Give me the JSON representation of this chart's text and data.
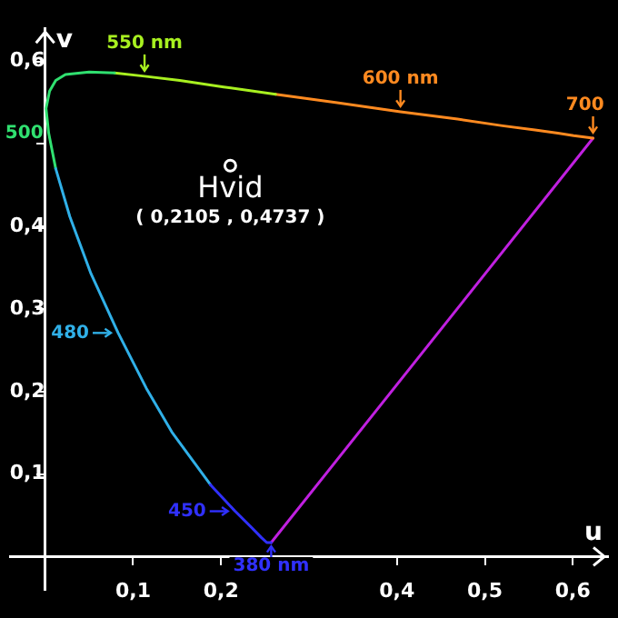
{
  "chart_data": {
    "type": "line",
    "xlabel": "u",
    "ylabel": "v",
    "xlim": [
      -0.04,
      0.64
    ],
    "ylim": [
      -0.04,
      0.64
    ],
    "xticks": [
      {
        "value": 0.1,
        "label": "0,1"
      },
      {
        "value": 0.2,
        "label": "0,2"
      },
      {
        "value": 0.3,
        "label": null
      },
      {
        "value": 0.4,
        "label": "0,4"
      },
      {
        "value": 0.5,
        "label": "0,5"
      },
      {
        "value": 0.6,
        "label": "0,6"
      }
    ],
    "yticks": [
      {
        "value": 0.1,
        "label": "0,1"
      },
      {
        "value": 0.2,
        "label": "0,2"
      },
      {
        "value": 0.3,
        "label": "0,3"
      },
      {
        "value": 0.4,
        "label": "0,4"
      },
      {
        "value": 0.5,
        "label": null
      },
      {
        "value": 0.6,
        "label": "0,6"
      }
    ],
    "grid": false,
    "legend": false,
    "marker": "none",
    "line_style": "solid",
    "series": [
      {
        "color": "#3030ff",
        "x": [
          0.257,
          0.252,
          0.246,
          0.235,
          0.216,
          0.188
        ],
        "values": [
          0.017,
          0.017,
          0.023,
          0.035,
          0.055,
          0.087
        ]
      },
      {
        "color": "#30b0e8",
        "x": [
          0.188,
          0.144,
          0.115,
          0.083,
          0.052,
          0.028,
          0.012
        ],
        "values": [
          0.087,
          0.151,
          0.204,
          0.271,
          0.343,
          0.412,
          0.47
        ]
      },
      {
        "color": "#30e070",
        "x": [
          0.012,
          0.004,
          0.001,
          0.005,
          0.012,
          0.023,
          0.05,
          0.079
        ],
        "values": [
          0.47,
          0.513,
          0.543,
          0.564,
          0.577,
          0.584,
          0.587,
          0.586
        ]
      },
      {
        "color": "#a8f020",
        "x": [
          0.079,
          0.113,
          0.153,
          0.203,
          0.262
        ],
        "values": [
          0.586,
          0.582,
          0.577,
          0.569,
          0.56
        ]
      },
      {
        "color": "#ff8a20",
        "x": [
          0.262,
          0.332,
          0.404,
          0.469,
          0.52,
          0.557,
          0.583,
          0.601,
          0.623
        ],
        "values": [
          0.56,
          0.55,
          0.539,
          0.53,
          0.522,
          0.517,
          0.513,
          0.51,
          0.507
        ]
      },
      {
        "color": "#c020e0",
        "x": [
          0.623,
          0.257
        ],
        "values": [
          0.507,
          0.017
        ]
      },
      {
        "type": "scatter",
        "color": "#ffffff",
        "marker": "circle",
        "x": [
          0.2105
        ],
        "values": [
          0.4737
        ]
      }
    ],
    "annotations": [
      {
        "text": "550 nm",
        "x": 0.113,
        "y": 0.582
      },
      {
        "text": "600 nm",
        "x": 0.404,
        "y": 0.539
      },
      {
        "text": "700",
        "x": 0.623,
        "y": 0.507
      },
      {
        "text": "500",
        "x": 0.004,
        "y": 0.513
      },
      {
        "text": "480",
        "x": 0.083,
        "y": 0.271
      },
      {
        "text": "450",
        "x": 0.216,
        "y": 0.055
      },
      {
        "text": "380 nm",
        "x": 0.257,
        "y": 0.017
      },
      {
        "text": "Hvid",
        "x": 0.2105,
        "y": 0.4737
      },
      {
        "text": "( 0,2105 , 0,4737 )",
        "x": 0.2105,
        "y": 0.4737
      }
    ]
  }
}
